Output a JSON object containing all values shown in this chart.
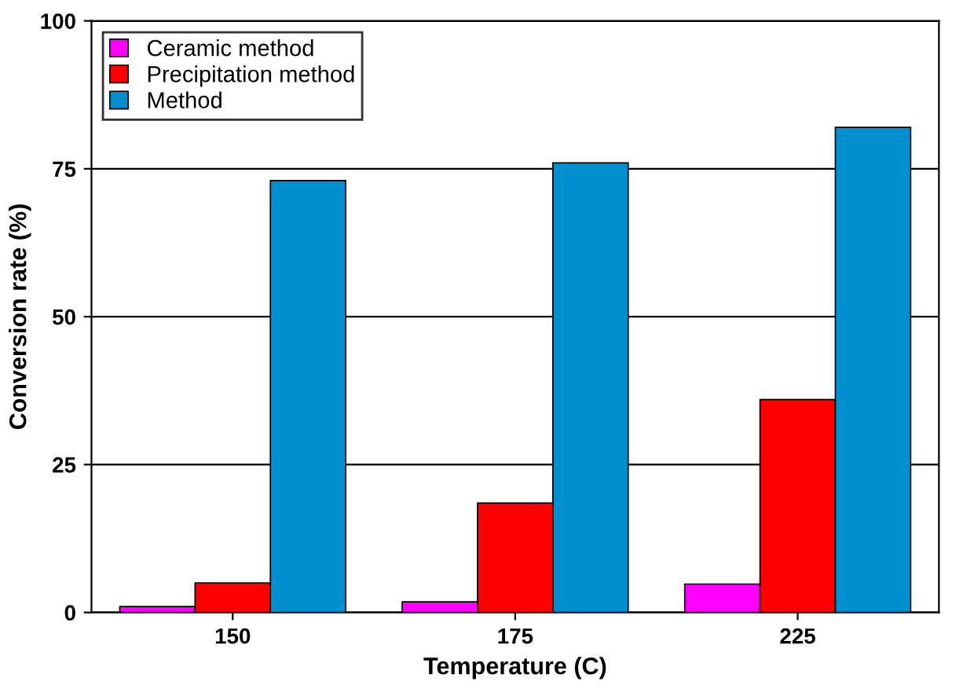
{
  "chart_data": {
    "type": "bar",
    "xlabel": "Temperature (C)",
    "ylabel": "Conversion rate (%)",
    "categories": [
      "150",
      "175",
      "225"
    ],
    "series": [
      {
        "name": "Ceramic method",
        "color": "#ff00ff",
        "values": [
          1,
          1.8,
          4.8
        ]
      },
      {
        "name": "Precipitation method",
        "color": "#ff0000",
        "values": [
          5,
          18.5,
          36
        ]
      },
      {
        "name": "Method",
        "color": "#0090d0",
        "values": [
          73,
          76,
          82
        ]
      }
    ],
    "ylim": [
      0,
      100
    ],
    "yticks": [
      0,
      25,
      50,
      75,
      100
    ],
    "grid": "y",
    "legend": "top left"
  }
}
